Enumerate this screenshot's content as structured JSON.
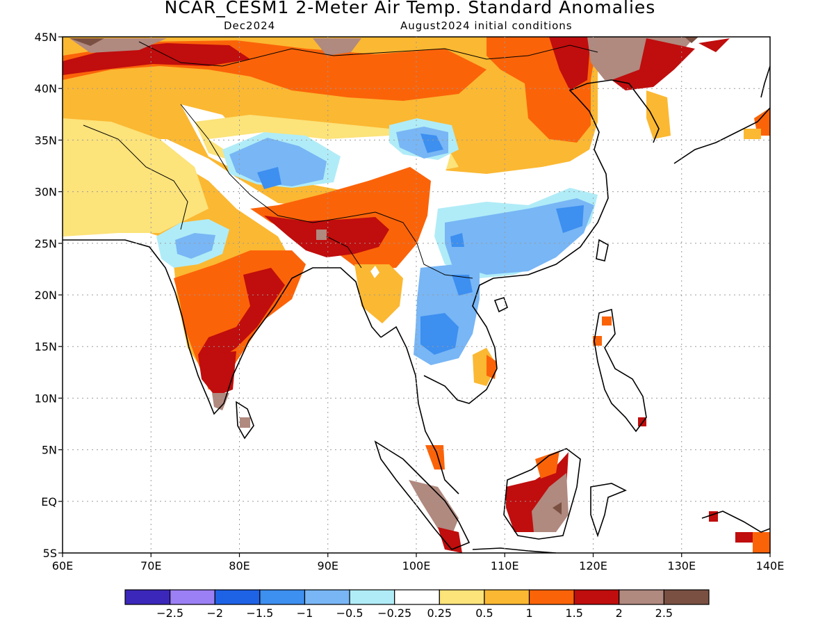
{
  "title": "NCAR_CESM1 2-Meter Air Temp. Standard Anomalies",
  "subtitle_left": "Dec2024",
  "subtitle_right": "August2024 initial conditions",
  "map": {
    "lon_range": [
      60,
      140
    ],
    "lat_range": [
      -5,
      45
    ],
    "grid": "dotted",
    "x_ticks": [
      "60E",
      "70E",
      "80E",
      "90E",
      "100E",
      "110E",
      "120E",
      "130E",
      "140E"
    ],
    "y_ticks": [
      "45N",
      "40N",
      "35N",
      "30N",
      "25N",
      "20N",
      "15N",
      "10N",
      "5N",
      "EQ",
      "5S"
    ]
  },
  "legend": {
    "colors": [
      "#3b27ba",
      "#9b7ff5",
      "#1e62e6",
      "#3d8ff0",
      "#78b6f5",
      "#b0ecf7",
      "#ffffff",
      "#fce37a",
      "#fbb832",
      "#fb6309",
      "#c00d0d",
      "#b0897f",
      "#7a5042"
    ],
    "labels": [
      "−2.5",
      "−2",
      "−1.5",
      "−1",
      "−0.5",
      "−0.25",
      "0.25",
      "0.5",
      "1",
      "1.5",
      "2",
      "2.5"
    ]
  }
}
